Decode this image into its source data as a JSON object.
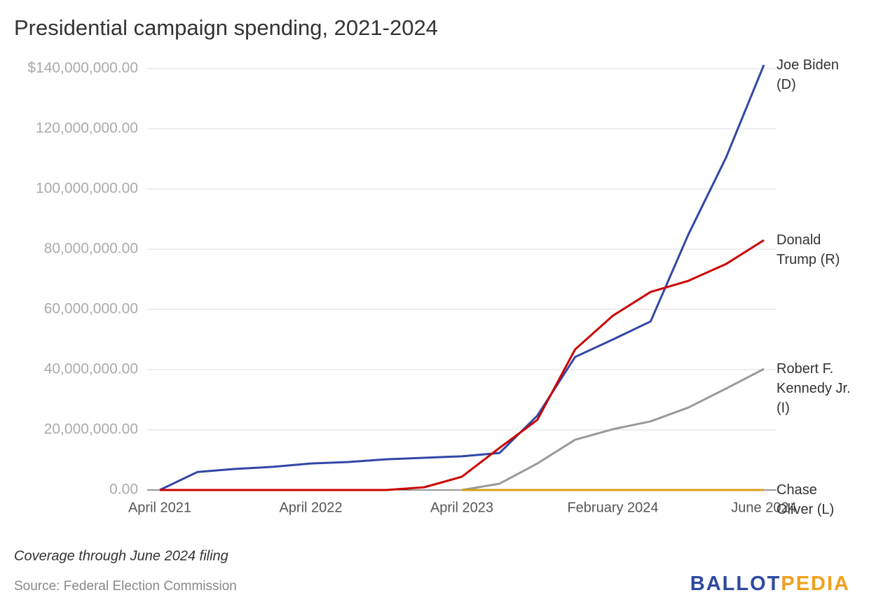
{
  "chart_data": {
    "type": "line",
    "title": "Presidential campaign spending, 2021-2024",
    "categories": [
      "April 2021",
      null,
      null,
      null,
      "April 2022",
      null,
      null,
      null,
      "April 2023",
      null,
      null,
      null,
      "February 2024",
      null,
      null,
      null,
      "June 2024"
    ],
    "ylim": [
      0,
      140000000
    ],
    "yticks": [
      {
        "value": 0,
        "label": "0.00"
      },
      {
        "value": 20000000,
        "label": "20,000,000.00"
      },
      {
        "value": 40000000,
        "label": "40,000,000.00"
      },
      {
        "value": 60000000,
        "label": "60,000,000.00"
      },
      {
        "value": 80000000,
        "label": "80,000,000.00"
      },
      {
        "value": 100000000,
        "label": "100,000,000.00"
      },
      {
        "value": 120000000,
        "label": "120,000,000.00"
      },
      {
        "value": 140000000,
        "label": "$140,000,000.00"
      }
    ],
    "grid": true,
    "series": [
      {
        "name": "Joe Biden (D)",
        "color": "#3347a6",
        "values": [
          0,
          6000000,
          7000000,
          7700000,
          8800000,
          9300000,
          10200000,
          10700000,
          11200000,
          12300000,
          24700000,
          44200000,
          50000000,
          56000000,
          84900000,
          110500000,
          141200000
        ]
      },
      {
        "name": "Donald Trump (R)",
        "color": "#cc0000",
        "values": [
          0,
          0,
          0,
          0,
          0,
          0,
          0,
          900000,
          4400000,
          14000000,
          23300000,
          46700000,
          57900000,
          65800000,
          69500000,
          75100000,
          83000000
        ]
      },
      {
        "name": "Robert F. Kennedy Jr. (I)",
        "color": "#999999",
        "values": [
          null,
          null,
          null,
          null,
          null,
          null,
          null,
          null,
          0,
          2100000,
          8800000,
          16700000,
          20200000,
          22800000,
          27400000,
          33700000,
          40200000
        ]
      },
      {
        "name": "Chase Oliver (L)",
        "color": "#d4a017",
        "values": [
          null,
          null,
          null,
          null,
          null,
          null,
          null,
          null,
          0,
          0,
          0,
          0,
          0,
          0,
          0,
          0,
          0
        ]
      }
    ],
    "note": "Coverage through June 2024 filing",
    "source": "Source: Federal Election Commission",
    "logo": {
      "part1": "BALLOT",
      "part2": "PEDIA"
    }
  }
}
